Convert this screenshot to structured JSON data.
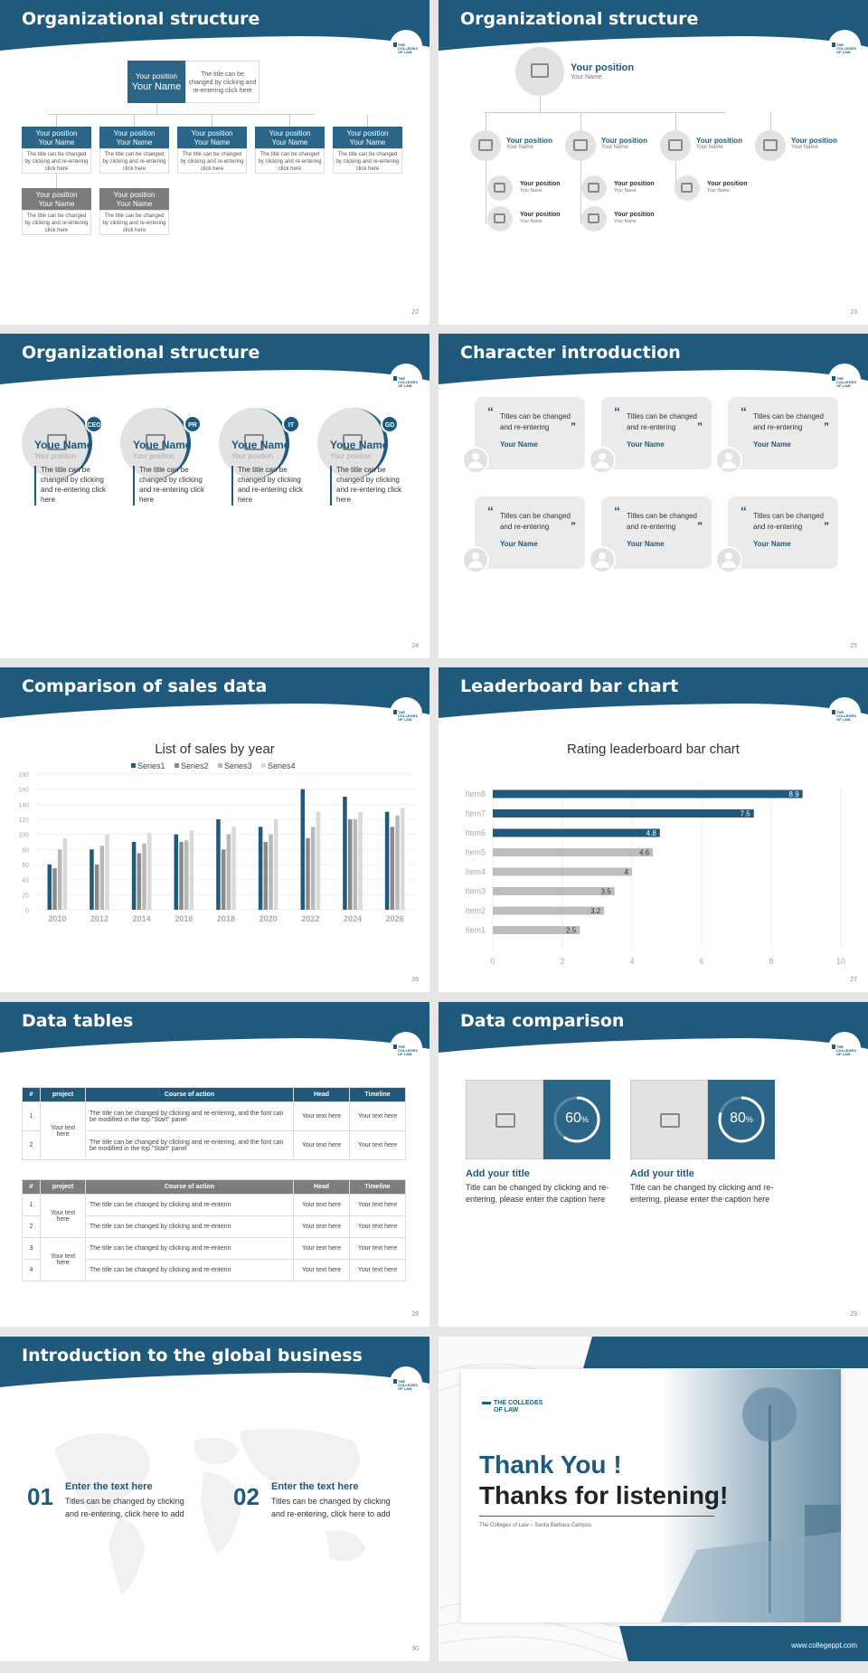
{
  "brand": {
    "logo_text": "THE COLLEGES OF LAW",
    "accent": "#1f5a7d",
    "grey": "#7d7d7d"
  },
  "slides": [
    {
      "title": "Organizational structure",
      "page": "22",
      "top": {
        "position": "Your position",
        "name": "Your Name",
        "desc": "The title can be changed by clicking and re-entering click here"
      },
      "row1": [
        {
          "position": "Your position",
          "name": "Your Name",
          "desc": "The title can be changed by clicking and re-entering click here"
        },
        {
          "position": "Your position",
          "name": "Your Name",
          "desc": "The title can be changed by clicking and re-entering click here"
        },
        {
          "position": "Your position",
          "name": "Your Name",
          "desc": "The title can be changed by clicking and re-entering click here"
        },
        {
          "position": "Your position",
          "name": "Your Name",
          "desc": "The title can be changed by clicking and re-entering click here"
        },
        {
          "position": "Your position",
          "name": "Your Name",
          "desc": "The title can be changed by clicking and re-entering click here"
        }
      ],
      "row2": [
        {
          "position": "Your position",
          "name": "Your Name",
          "desc": "The title can be changed by clicking and re-entering click here"
        },
        {
          "position": "Your position",
          "name": "Your Name",
          "desc": "The title can be changed by clicking and re-entering click here"
        }
      ]
    },
    {
      "title": "Organizational structure",
      "page": "23",
      "top": {
        "position": "Your position",
        "name": "Your Name"
      },
      "level": [
        {
          "position": "Your position",
          "name": "Your Name"
        },
        {
          "position": "Your position",
          "name": "Your Name"
        },
        {
          "position": "Your position",
          "name": "Your Name"
        },
        {
          "position": "Your position",
          "name": "Your Name"
        }
      ],
      "sub": [
        {
          "position": "Your position",
          "name": "Your Name"
        },
        {
          "position": "Your position",
          "name": "Your Name"
        },
        {
          "position": "Your position",
          "name": "Your Name"
        },
        {
          "position": "Your position",
          "name": "Your Name"
        },
        {
          "position": "Your position",
          "name": "Your Name"
        }
      ]
    },
    {
      "title": "Organizational structure",
      "page": "24",
      "people": [
        {
          "badge": "CEO",
          "name": "Youe Name",
          "position": "Your position",
          "desc": "The title can be changed by clicking and re-entering click here"
        },
        {
          "badge": "PR",
          "name": "Youe Name",
          "position": "Your position",
          "desc": "The title can be changed by clicking and re-entering click here"
        },
        {
          "badge": "IT",
          "name": "Youe Name",
          "position": "Your position",
          "desc": "The title can be changed by clicking and re-entering click here"
        },
        {
          "badge": "GD",
          "name": "Youe Name",
          "position": "Your position",
          "desc": "The title can be changed by clicking and re-entering click here"
        }
      ]
    },
    {
      "title": "Character introduction",
      "page": "25",
      "quotes": [
        {
          "text": "Titles can be changed and re-entering",
          "name": "Your Name"
        },
        {
          "text": "Titles can be changed and re-entering",
          "name": "Your Name"
        },
        {
          "text": "Titles can be changed and re-entering",
          "name": "Your Name"
        },
        {
          "text": "Titles can be changed and re-entering",
          "name": "Your Name"
        },
        {
          "text": "Titles can be changed and re-entering",
          "name": "Your Name"
        },
        {
          "text": "Titles can be changed and re-entering",
          "name": "Your Name"
        }
      ]
    },
    {
      "title": "Comparison of sales data",
      "page": "26"
    },
    {
      "title": "Leaderboard bar chart",
      "page": "27"
    },
    {
      "title": "Data tables",
      "page": "28",
      "table1": {
        "headers": [
          "#",
          "project",
          "Course of action",
          "Head",
          "Timeline"
        ],
        "rows": [
          {
            "num": "1",
            "project": "Your text here",
            "action": "The title can be changed by clicking and re-entering, and the font can be modified in the top \"Start\" panel",
            "head": "Your text here",
            "timeline": "Your text here"
          },
          {
            "num": "2",
            "project": "",
            "action": "The title can be changed by clicking and re-entering, and the font can be modified in the top \"Start\" panel",
            "head": "Your text here",
            "timeline": "Your text here"
          }
        ]
      },
      "table2": {
        "headers": [
          "#",
          "project",
          "Course of action",
          "Head",
          "Timeline"
        ],
        "project": "Your text here",
        "rows": [
          {
            "num": "1",
            "action": "The title can be changed by clicking and re-enterin",
            "head": "Your text here",
            "timeline": "Your text here"
          },
          {
            "num": "2",
            "action": "The title can be changed by clicking and re-enterin",
            "head": "Your text here",
            "timeline": "Your text here"
          },
          {
            "num": "3",
            "action": "The title can be changed by clicking and re-enterin",
            "head": "Your text here",
            "timeline": "Your text here"
          },
          {
            "num": "4",
            "action": "The title can be changed by clicking and re-enterin",
            "head": "Your text here",
            "timeline": "Your text here"
          }
        ]
      }
    },
    {
      "title": "Data comparison",
      "page": "29",
      "items": [
        {
          "percent": "60",
          "unit": "%",
          "progress": 0.6,
          "title": "Add your title",
          "text": "Title can be changed by clicking and re-entering, please enter the caption here"
        },
        {
          "percent": "80",
          "unit": "%",
          "progress": 0.8,
          "title": "Add your title",
          "text": "Title can be changed by clicking and re-entering, please enter the caption here"
        }
      ]
    },
    {
      "title": "Introduction to the global business",
      "page": "30",
      "items": [
        {
          "num": "01",
          "heading": "Enter the text here",
          "text": "Titles can be changed by clicking and re-entering, click here to add"
        },
        {
          "num": "02",
          "heading": "Enter the text here",
          "text": "Titles can be changed by clicking and re-entering, click here to add"
        }
      ]
    },
    {
      "thank_you": "Thank You !",
      "thanks": "Thanks for listening!",
      "caption": "The Colleges of Law – Santa Barbara Campus",
      "website": "www.collegeppt.com",
      "logo": "THE COLLEGES OF LAW"
    }
  ],
  "chart_data": [
    {
      "type": "bar",
      "title": "List of sales by year",
      "categories": [
        "2010",
        "2012",
        "2014",
        "2016",
        "2018",
        "2020",
        "2022",
        "2024",
        "2026"
      ],
      "series": [
        {
          "name": "Series1",
          "values": [
            60,
            80,
            90,
            100,
            120,
            110,
            160,
            150,
            130
          ],
          "color": "#1f5a7d"
        },
        {
          "name": "Series2",
          "values": [
            55,
            60,
            75,
            90,
            80,
            90,
            95,
            120,
            110
          ],
          "color": "#8a8a8a"
        },
        {
          "name": "Series3",
          "values": [
            80,
            85,
            88,
            92,
            100,
            100,
            110,
            120,
            125
          ],
          "color": "#b8b8b8"
        },
        {
          "name": "Series4",
          "values": [
            95,
            100,
            102,
            105,
            110,
            120,
            130,
            130,
            135
          ],
          "color": "#d9d9d9"
        }
      ],
      "yticks": [
        "0",
        "20",
        "40",
        "60",
        "80",
        "100",
        "120",
        "140",
        "160",
        "180"
      ],
      "ylim": [
        0,
        180
      ],
      "legend": "top"
    },
    {
      "type": "bar",
      "orientation": "horizontal",
      "title": "Rating leaderboard bar chart",
      "categories": [
        "Item8",
        "Item7",
        "Item6",
        "Item5",
        "Item4",
        "Item3",
        "Item2",
        "Item1"
      ],
      "values": [
        8.9,
        7.5,
        4.8,
        4.6,
        4,
        3.5,
        3.2,
        2.5
      ],
      "labels": [
        "8.9",
        "7.5",
        "4.8",
        "4.6",
        "4",
        "3.5",
        "3.2",
        "2.5"
      ],
      "xticks": [
        "0",
        "2",
        "4",
        "6",
        "8",
        "10"
      ],
      "xlim": [
        0,
        10
      ]
    }
  ]
}
